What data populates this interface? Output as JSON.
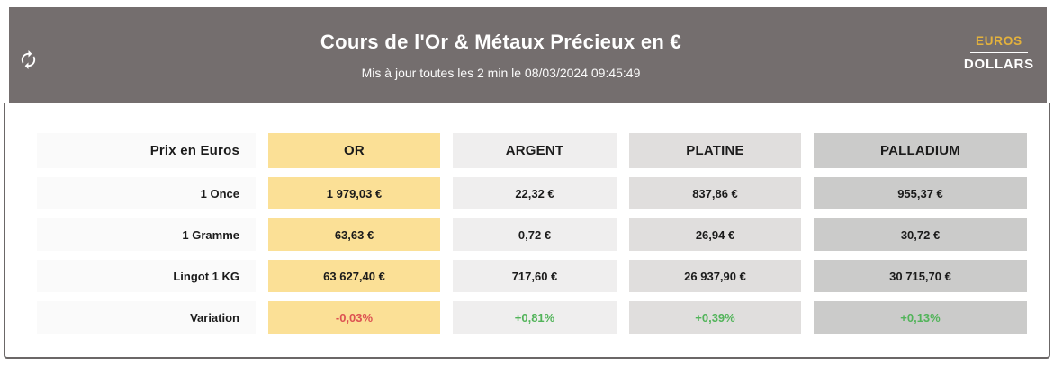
{
  "header": {
    "title": "Cours de l'Or & Métaux Précieux en €",
    "subtitle": "Mis à jour toutes les 2 min le 08/03/2024 09:45:49",
    "currency_toggle": {
      "euros_label": "EUROS",
      "dollars_label": "DOLLARS",
      "active": "EUROS"
    }
  },
  "table": {
    "corner_label": "Prix en Euros",
    "columns": [
      {
        "id": "or",
        "label": "OR",
        "bg": "#fbe096"
      },
      {
        "id": "argent",
        "label": "ARGENT",
        "bg": "#efeeee"
      },
      {
        "id": "platine",
        "label": "PLATINE",
        "bg": "#e0dedd"
      },
      {
        "id": "palladium",
        "label": "PALLADIUM",
        "bg": "#cbcbca"
      }
    ],
    "rows": [
      {
        "id": "once",
        "label": "1 Once",
        "values": [
          "1 979,03 €",
          "22,32 €",
          "837,86 €",
          "955,37 €"
        ]
      },
      {
        "id": "gramme",
        "label": "1 Gramme",
        "values": [
          "63,63 €",
          "0,72 €",
          "26,94 €",
          "30,72 €"
        ]
      },
      {
        "id": "lingot",
        "label": "Lingot 1 KG",
        "values": [
          "63 627,40 €",
          "717,60 €",
          "26 937,90 €",
          "30 715,70 €"
        ]
      },
      {
        "id": "variation",
        "label": "Variation",
        "values": [
          "-0,03%",
          "+0,81%",
          "+0,39%",
          "+0,13%"
        ],
        "value_colors": [
          "#dd5252",
          "#52b45a",
          "#52b45a",
          "#52b45a"
        ]
      }
    ]
  },
  "colors": {
    "header_bg": "#746e6e",
    "card_border": "#6b6767",
    "gold_accent": "#e4b23c",
    "or_bg": "#fbe096",
    "label_bg": "#fafafa",
    "negative": "#dd5252",
    "positive": "#52b45a",
    "text": "#1b1b1b"
  }
}
